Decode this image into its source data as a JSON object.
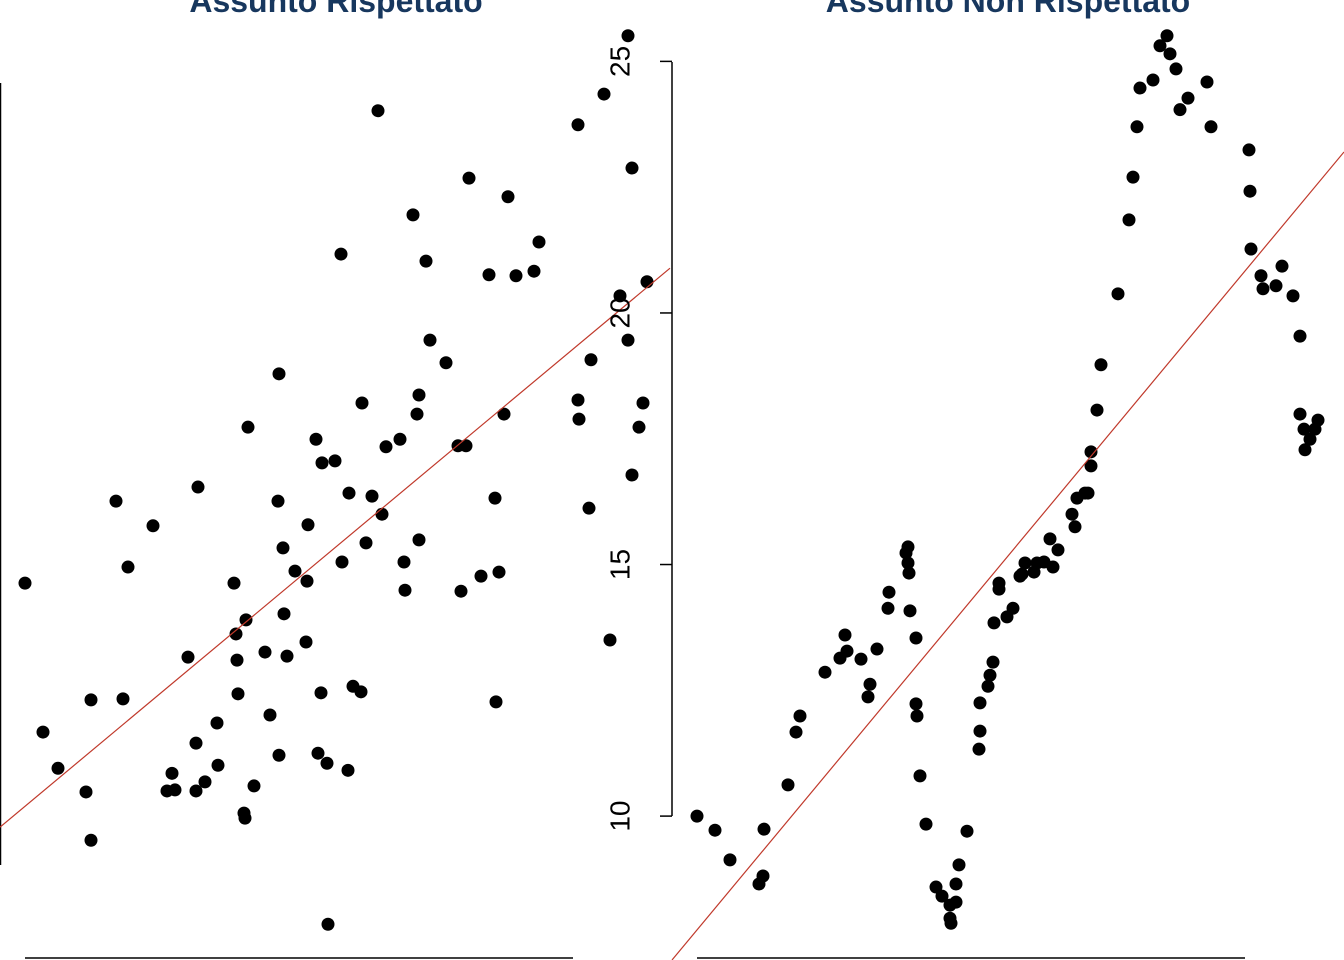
{
  "chart_data": [
    {
      "type": "scatter",
      "title": "Assunto Rispettato",
      "color": "#000000",
      "xlim": [
        0,
        134
      ],
      "ylim": [
        7.14,
        26.22
      ],
      "x": [
        5.0,
        8.6,
        11.6,
        17.2,
        18.2,
        18.2,
        23.2,
        24.6,
        25.6,
        30.6,
        33.4,
        34.4,
        35.0,
        37.6,
        39.2,
        39.2,
        39.6,
        41.0,
        43.4,
        43.6,
        46.8,
        47.2,
        47.4,
        47.6,
        48.8,
        49.0,
        49.2,
        49.6,
        50.8,
        53.0,
        54.0,
        55.6,
        55.8,
        55.8,
        56.6,
        56.8,
        57.4,
        59.0,
        61.2,
        61.4,
        61.6,
        63.2,
        63.6,
        64.2,
        64.4,
        65.4,
        65.6,
        67.0,
        68.2,
        68.4,
        69.6,
        69.8,
        70.6,
        72.2,
        72.4,
        73.2,
        74.4,
        75.6,
        76.4,
        77.2,
        80.0,
        80.8,
        81.0,
        82.6,
        83.4,
        83.8,
        83.8,
        85.2,
        86.0,
        89.2,
        91.6,
        92.2,
        93.2,
        93.8,
        96.2,
        97.8,
        99.0,
        99.2,
        99.8,
        100.8,
        101.6,
        103.2,
        106.8,
        107.8,
        115.6,
        115.6,
        115.8,
        117.8,
        118.2,
        120.8,
        122.0,
        124.0,
        125.6,
        125.6,
        126.4,
        126.4,
        127.8,
        128.6,
        129.4
      ],
      "values": [
        14.63,
        11.67,
        10.95,
        10.48,
        12.31,
        9.52,
        16.26,
        12.33,
        14.95,
        15.77,
        10.5,
        10.85,
        10.52,
        13.16,
        11.45,
        10.5,
        16.54,
        10.68,
        11.85,
        11.01,
        14.63,
        13.62,
        13.1,
        12.43,
        10.06,
        9.96,
        13.9,
        17.73,
        10.6,
        13.26,
        12.01,
        16.26,
        18.79,
        11.21,
        15.33,
        14.02,
        13.18,
        14.87,
        13.46,
        14.67,
        15.79,
        17.49,
        11.25,
        12.45,
        17.02,
        11.05,
        7.85,
        17.06,
        21.17,
        15.05,
        10.91,
        16.42,
        12.58,
        12.47,
        18.21,
        15.43,
        16.36,
        24.02,
        16.0,
        17.34,
        17.49,
        15.05,
        14.49,
        21.95,
        17.99,
        18.37,
        15.49,
        21.03,
        19.46,
        19.01,
        17.36,
        14.47,
        17.36,
        22.68,
        14.77,
        20.76,
        16.32,
        12.27,
        14.85,
        17.99,
        22.31,
        20.74,
        20.83,
        21.41,
        23.74,
        18.27,
        17.89,
        16.12,
        19.07,
        24.35,
        13.5,
        20.34,
        25.51,
        19.46,
        22.88,
        16.78,
        17.73,
        18.21,
        20.62
      ],
      "fit": {
        "color": "#c0392b",
        "x": [
          0,
          134
        ],
        "y": [
          9.78,
          20.89
        ]
      }
    },
    {
      "type": "scatter",
      "title": "Assunto Non Rispettato",
      "color": "#000000",
      "xlim": [
        0,
        134.4
      ],
      "ylim": [
        7.14,
        26.22
      ],
      "yticks": [
        10,
        15,
        20,
        25
      ],
      "x": [
        5.0,
        8.6,
        11.6,
        17.4,
        18.2,
        18.4,
        23.2,
        24.8,
        25.6,
        30.6,
        33.6,
        34.6,
        35.0,
        37.8,
        39.2,
        39.6,
        41.0,
        43.2,
        43.4,
        46.8,
        47.2,
        47.2,
        47.4,
        47.6,
        48.8,
        48.8,
        49.0,
        49.6,
        50.8,
        52.8,
        54.0,
        55.6,
        55.6,
        55.8,
        56.8,
        56.8,
        57.4,
        59.0,
        61.4,
        61.6,
        61.6,
        63.2,
        63.6,
        64.2,
        64.4,
        65.4,
        65.4,
        67.0,
        68.2,
        69.6,
        70.0,
        70.6,
        72.4,
        73.0,
        74.4,
        75.6,
        76.2,
        77.2,
        80.0,
        80.6,
        81.0,
        82.6,
        83.2,
        83.8,
        83.8,
        85.0,
        85.8,
        89.2,
        91.4,
        92.2,
        93.0,
        93.6,
        96.2,
        97.6,
        99.0,
        99.6,
        100.8,
        101.6,
        103.2,
        107.0,
        107.8,
        115.4,
        115.6,
        115.8,
        117.8,
        118.2,
        120.8,
        122.0,
        124.2,
        125.6,
        125.6,
        126.4,
        126.6,
        127.6,
        128.6,
        129.2
      ],
      "values": [
        10.0,
        9.72,
        9.13,
        8.65,
        8.81,
        9.74,
        10.62,
        11.67,
        11.99,
        12.86,
        13.14,
        13.6,
        13.28,
        13.12,
        12.37,
        12.62,
        13.32,
        14.13,
        14.45,
        15.23,
        15.35,
        15.03,
        14.83,
        14.08,
        13.54,
        12.23,
        11.99,
        10.8,
        9.84,
        8.59,
        8.41,
        8.23,
        7.97,
        7.87,
        8.29,
        8.65,
        9.03,
        9.7,
        11.33,
        11.69,
        12.25,
        12.58,
        12.8,
        13.06,
        13.84,
        14.63,
        14.51,
        13.96,
        14.13,
        14.77,
        14.81,
        15.03,
        14.85,
        15.03,
        15.05,
        15.51,
        14.95,
        15.29,
        16.0,
        15.75,
        16.32,
        16.42,
        16.42,
        16.96,
        17.24,
        18.07,
        18.97,
        20.38,
        21.85,
        22.7,
        23.7,
        24.47,
        24.63,
        25.31,
        25.51,
        25.15,
        24.85,
        24.04,
        24.27,
        24.59,
        23.7,
        23.24,
        22.42,
        21.27,
        20.74,
        20.48,
        20.54,
        20.93,
        20.34,
        19.54,
        17.99,
        17.69,
        17.28,
        17.49,
        17.69,
        17.87
      ],
      "fit": {
        "color": "#c0392b",
        "x": [
          0,
          134.4
        ],
        "y": [
          7.14,
          23.2
        ]
      }
    }
  ]
}
